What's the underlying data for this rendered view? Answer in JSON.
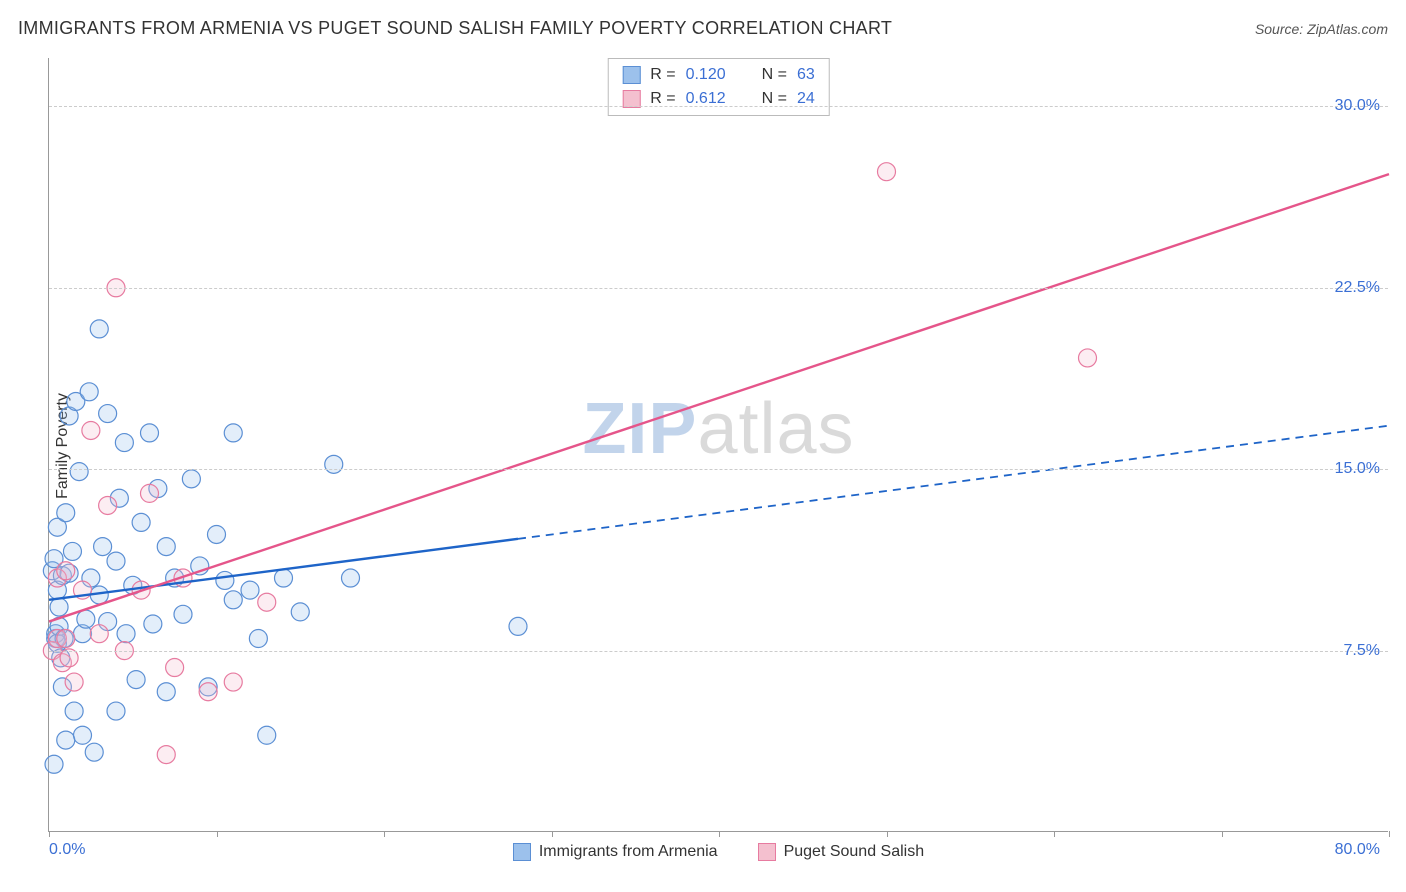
{
  "title": "IMMIGRANTS FROM ARMENIA VS PUGET SOUND SALISH FAMILY POVERTY CORRELATION CHART",
  "source": "Source: ZipAtlas.com",
  "watermark": {
    "left": "ZIP",
    "right": "atlas"
  },
  "ylabel": "Family Poverty",
  "chart": {
    "type": "scatter",
    "background_color": "#ffffff",
    "grid_color": "#cccccc",
    "axis_color": "#999999",
    "xlim": [
      0,
      80
    ],
    "ylim": [
      0,
      32
    ],
    "xticks": [
      0,
      10,
      20,
      30,
      40,
      50,
      60,
      70,
      80
    ],
    "xtick_labels": {
      "0": "0.0%",
      "80": "80.0%"
    },
    "yticks": [
      7.5,
      15.0,
      22.5,
      30.0
    ],
    "ytick_labels": [
      "7.5%",
      "15.0%",
      "22.5%",
      "30.0%"
    ],
    "label_color": "#3b6fd4",
    "label_fontsize": 16,
    "title_fontsize": 18,
    "marker_radius": 9,
    "marker_stroke_width": 1.2,
    "marker_fill_opacity": 0.28
  },
  "series": [
    {
      "name": "Immigrants from Armenia",
      "color_fill": "#9cc1ec",
      "color_stroke": "#5b8fd4",
      "line_color": "#1e64c8",
      "R": "0.120",
      "N": "63",
      "trend": {
        "x1": 0,
        "y1": 9.6,
        "x2": 80,
        "y2": 16.8,
        "solid_until_x": 28
      },
      "points": [
        [
          0.2,
          10.8
        ],
        [
          0.3,
          11.3
        ],
        [
          0.4,
          8.0
        ],
        [
          0.4,
          8.2
        ],
        [
          0.5,
          7.8
        ],
        [
          0.5,
          10.0
        ],
        [
          0.5,
          12.6
        ],
        [
          0.6,
          9.3
        ],
        [
          0.6,
          8.5
        ],
        [
          0.7,
          7.2
        ],
        [
          0.8,
          6.0
        ],
        [
          0.8,
          10.6
        ],
        [
          0.9,
          8.0
        ],
        [
          1.0,
          13.2
        ],
        [
          1.0,
          3.8
        ],
        [
          1.2,
          10.7
        ],
        [
          1.2,
          17.2
        ],
        [
          1.4,
          11.6
        ],
        [
          1.5,
          5.0
        ],
        [
          1.6,
          17.8
        ],
        [
          1.8,
          14.9
        ],
        [
          2.0,
          8.2
        ],
        [
          2.0,
          4.0
        ],
        [
          2.2,
          8.8
        ],
        [
          2.4,
          18.2
        ],
        [
          2.5,
          10.5
        ],
        [
          2.7,
          3.3
        ],
        [
          3.0,
          20.8
        ],
        [
          3.0,
          9.8
        ],
        [
          3.2,
          11.8
        ],
        [
          3.5,
          8.7
        ],
        [
          3.5,
          17.3
        ],
        [
          4.0,
          11.2
        ],
        [
          4.0,
          5.0
        ],
        [
          4.2,
          13.8
        ],
        [
          4.5,
          16.1
        ],
        [
          4.6,
          8.2
        ],
        [
          5.0,
          10.2
        ],
        [
          5.2,
          6.3
        ],
        [
          5.5,
          12.8
        ],
        [
          6.0,
          16.5
        ],
        [
          6.2,
          8.6
        ],
        [
          6.5,
          14.2
        ],
        [
          7.0,
          11.8
        ],
        [
          7.0,
          5.8
        ],
        [
          7.5,
          10.5
        ],
        [
          8.0,
          9.0
        ],
        [
          8.5,
          14.6
        ],
        [
          9.0,
          11.0
        ],
        [
          9.5,
          6.0
        ],
        [
          10.0,
          12.3
        ],
        [
          10.5,
          10.4
        ],
        [
          11.0,
          16.5
        ],
        [
          11.0,
          9.6
        ],
        [
          12.0,
          10.0
        ],
        [
          12.5,
          8.0
        ],
        [
          13.0,
          4.0
        ],
        [
          14.0,
          10.5
        ],
        [
          15.0,
          9.1
        ],
        [
          17.0,
          15.2
        ],
        [
          18.0,
          10.5
        ],
        [
          28.0,
          8.5
        ],
        [
          0.3,
          2.8
        ]
      ]
    },
    {
      "name": "Puget Sound Salish",
      "color_fill": "#f4c0cf",
      "color_stroke": "#e77ba0",
      "line_color": "#e5558a",
      "R": "0.612",
      "N": "24",
      "trend": {
        "x1": 0,
        "y1": 8.7,
        "x2": 80,
        "y2": 27.2,
        "solid_until_x": 80
      },
      "points": [
        [
          0.2,
          7.5
        ],
        [
          0.5,
          8.0
        ],
        [
          0.5,
          10.5
        ],
        [
          0.8,
          7.0
        ],
        [
          1.0,
          8.0
        ],
        [
          1.0,
          10.8
        ],
        [
          1.2,
          7.2
        ],
        [
          1.5,
          6.2
        ],
        [
          2.0,
          10.0
        ],
        [
          2.5,
          16.6
        ],
        [
          3.0,
          8.2
        ],
        [
          3.5,
          13.5
        ],
        [
          4.0,
          22.5
        ],
        [
          4.5,
          7.5
        ],
        [
          5.5,
          10.0
        ],
        [
          6.0,
          14.0
        ],
        [
          7.0,
          3.2
        ],
        [
          7.5,
          6.8
        ],
        [
          8.0,
          10.5
        ],
        [
          9.5,
          5.8
        ],
        [
          11.0,
          6.2
        ],
        [
          13.0,
          9.5
        ],
        [
          50.0,
          27.3
        ],
        [
          62.0,
          19.6
        ]
      ]
    }
  ],
  "legend_top_labels": {
    "R": "R =",
    "N": "N ="
  },
  "legend_bottom": [
    {
      "label": "Immigrants from Armenia",
      "fill": "#9cc1ec",
      "stroke": "#5b8fd4"
    },
    {
      "label": "Puget Sound Salish",
      "fill": "#f4c0cf",
      "stroke": "#e77ba0"
    }
  ]
}
